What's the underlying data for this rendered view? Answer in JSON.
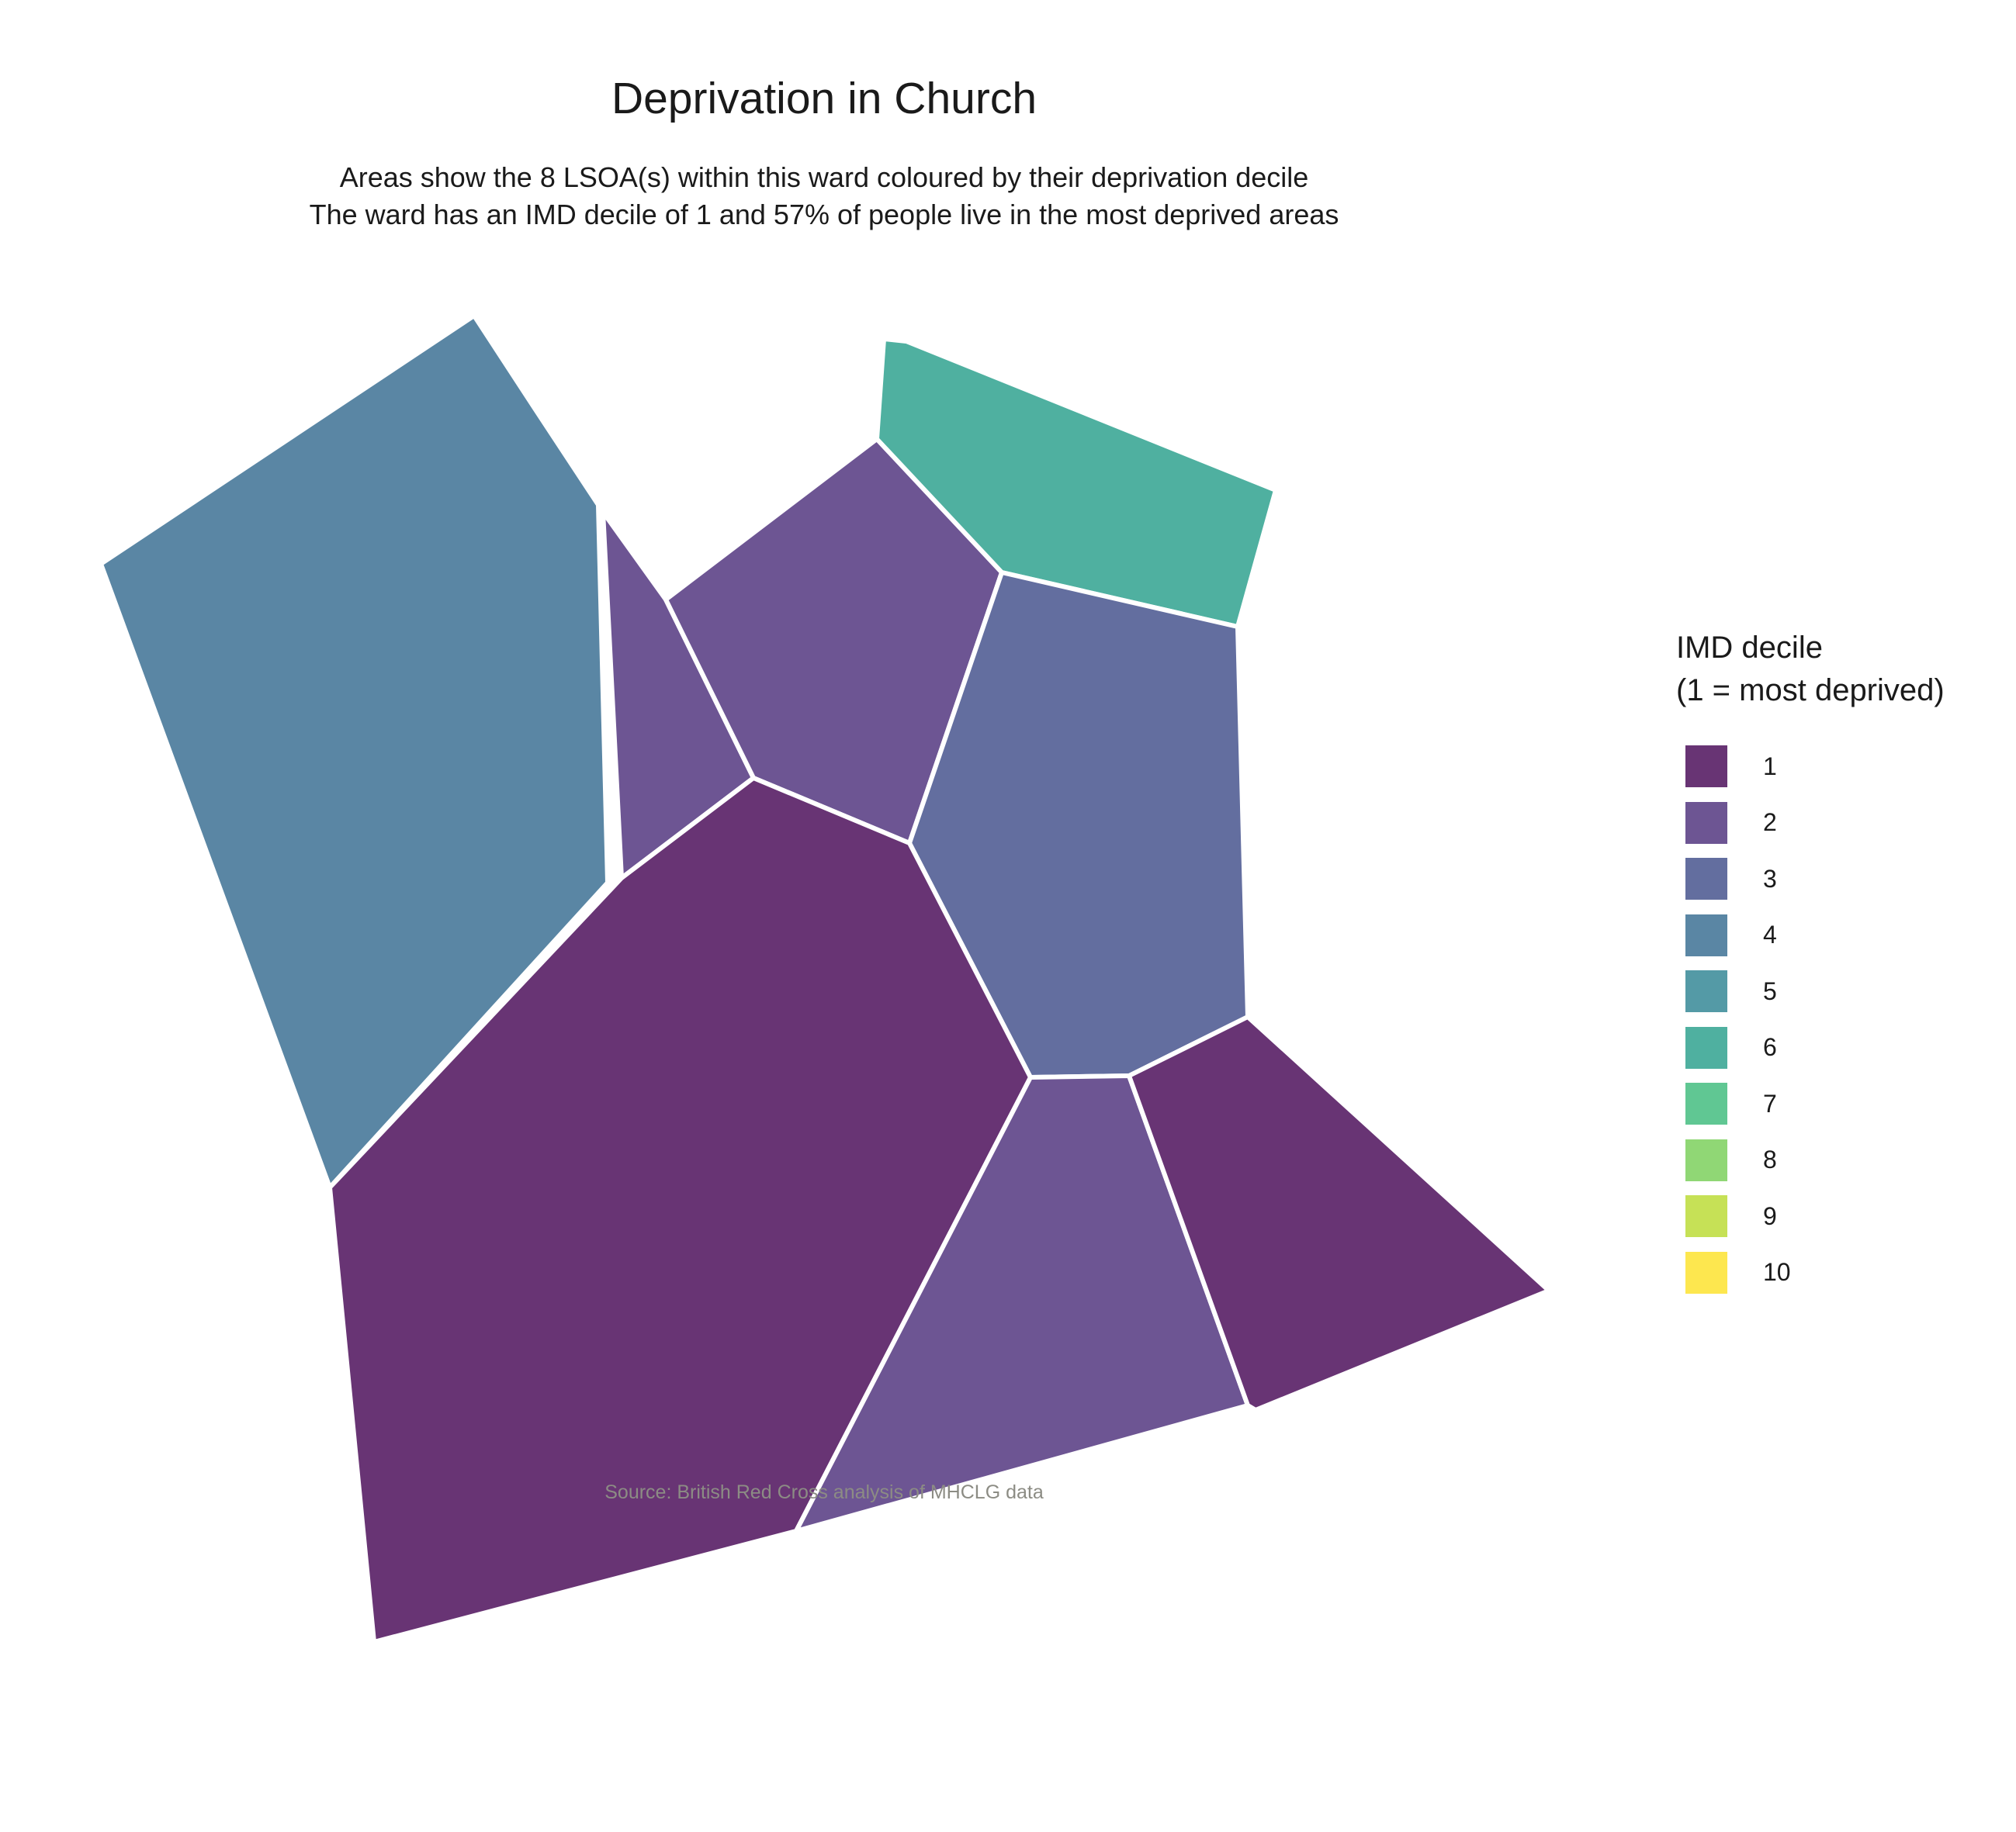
{
  "title": "Deprivation in Church",
  "subtitle_line1": "Areas show the 8 LSOA(s) within this ward coloured by their deprivation decile",
  "subtitle_line2": "The ward has an IMD decile of 1 and 57% of people live in the most deprived areas",
  "source": "Source: British Red Cross analysis of MHCLG data",
  "legend": {
    "title_line1": "IMD decile",
    "title_line2": "(1 = most deprived)",
    "items": [
      {
        "label": "1",
        "color": "#683474"
      },
      {
        "label": "2",
        "color": "#6d5593"
      },
      {
        "label": "3",
        "color": "#636e9f"
      },
      {
        "label": "4",
        "color": "#5a86a4"
      },
      {
        "label": "5",
        "color": "#549aa6"
      },
      {
        "label": "6",
        "color": "#4fb0a0"
      },
      {
        "label": "7",
        "color": "#60c793"
      },
      {
        "label": "8",
        "color": "#90d775"
      },
      {
        "label": "9",
        "color": "#c6e156"
      },
      {
        "label": "10",
        "color": "#fde74f"
      }
    ]
  },
  "map": {
    "border_color": "#ffffff",
    "areas": [
      {
        "id": "lsoa-a",
        "decile": 4
      },
      {
        "id": "lsoa-b",
        "decile": 2
      },
      {
        "id": "lsoa-c",
        "decile": 2
      },
      {
        "id": "lsoa-d",
        "decile": 6
      },
      {
        "id": "lsoa-e",
        "decile": 3
      },
      {
        "id": "lsoa-f",
        "decile": 1
      },
      {
        "id": "lsoa-g",
        "decile": 2
      },
      {
        "id": "lsoa-h",
        "decile": 1
      }
    ]
  }
}
